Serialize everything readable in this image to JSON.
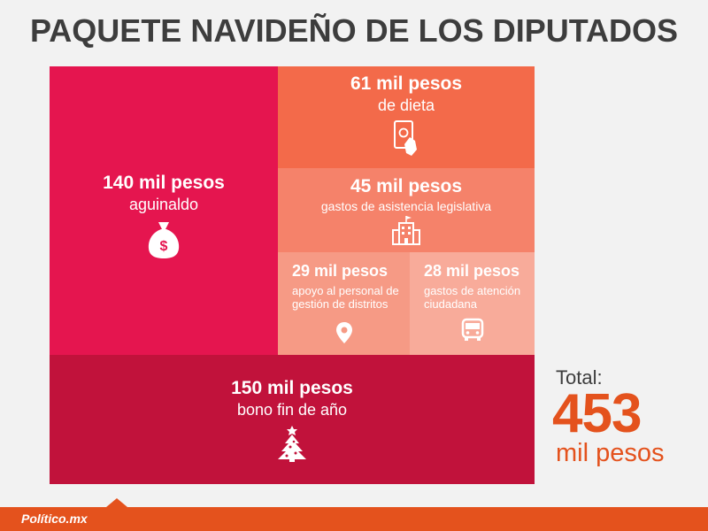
{
  "title": "PAQUETE NAVIDEÑO DE LOS DIPUTADOS",
  "chart_data": {
    "type": "treemap",
    "unit": "mil pesos",
    "items": [
      {
        "value": 140,
        "value_label": "140 mil pesos",
        "label": "aguinaldo",
        "color": "#e5154f",
        "icon": "money-bag-icon"
      },
      {
        "value": 61,
        "value_label": "61 mil pesos",
        "label": "de dieta",
        "color": "#f36a4a",
        "icon": "hand-phone-icon"
      },
      {
        "value": 45,
        "value_label": "45 mil pesos",
        "label": "gastos de asistencia legislativa",
        "color": "#f5826a",
        "icon": "building-icon"
      },
      {
        "value": 29,
        "value_label": "29 mil pesos",
        "label": "apoyo al personal de gestión de distritos",
        "color": "#f69a85",
        "icon": "location-pin-icon"
      },
      {
        "value": 28,
        "value_label": "28 mil pesos",
        "label": "gastos de atención ciudadana",
        "color": "#f8ab9a",
        "icon": "bus-icon"
      },
      {
        "value": 150,
        "value_label": "150 mil pesos",
        "label": "bono fin de año",
        "color": "#c1123b",
        "icon": "christmas-tree-icon"
      }
    ],
    "total": {
      "label": "Total:",
      "value": "453",
      "unit": "mil pesos"
    }
  },
  "footer": {
    "brand": "Político.mx"
  }
}
